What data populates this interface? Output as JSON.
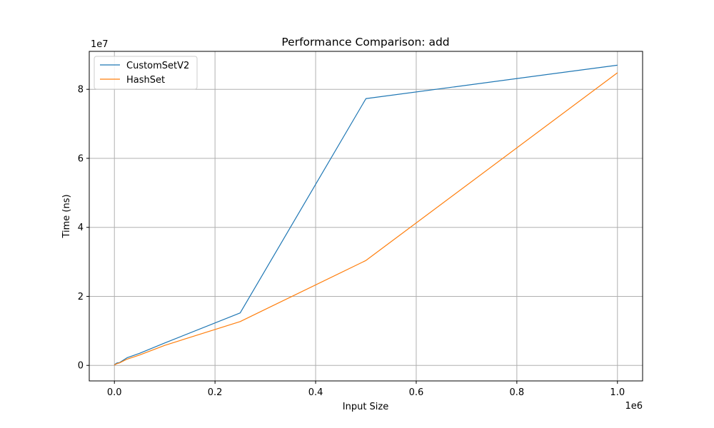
{
  "chart_data": {
    "type": "line",
    "title": "Performance Comparison: add",
    "xlabel": "Input Size",
    "ylabel": "Time (ns)",
    "x_offset_label": "1e6",
    "y_offset_label": "1e7",
    "x_scale": 1000000,
    "y_scale": 10000000,
    "xlim": [
      -50000,
      1050000
    ],
    "ylim": [
      -4500000,
      91000000
    ],
    "x_ticks": [
      0,
      200000,
      400000,
      600000,
      800000,
      1000000
    ],
    "x_tick_labels": [
      "0.0",
      "0.2",
      "0.4",
      "0.6",
      "0.8",
      "1.0"
    ],
    "y_ticks": [
      0,
      20000000,
      40000000,
      60000000,
      80000000
    ],
    "y_tick_labels": [
      "0",
      "2",
      "4",
      "6",
      "8"
    ],
    "grid": true,
    "legend_position": "top-left",
    "x": [
      100,
      500,
      1000,
      5000,
      10000,
      25000,
      50000,
      100000,
      250000,
      500000,
      1000000
    ],
    "series": [
      {
        "name": "CustomSetV2",
        "color": "#1f77b4",
        "values": [
          20000,
          150000,
          300000,
          700000,
          800000,
          2200000,
          3500000,
          6500000,
          15200000,
          77300000,
          87000000
        ]
      },
      {
        "name": "HashSet",
        "color": "#ff7f0e",
        "values": [
          15000,
          100000,
          200000,
          500000,
          700000,
          1800000,
          3000000,
          5800000,
          12700000,
          30400000,
          84800000
        ]
      }
    ]
  }
}
